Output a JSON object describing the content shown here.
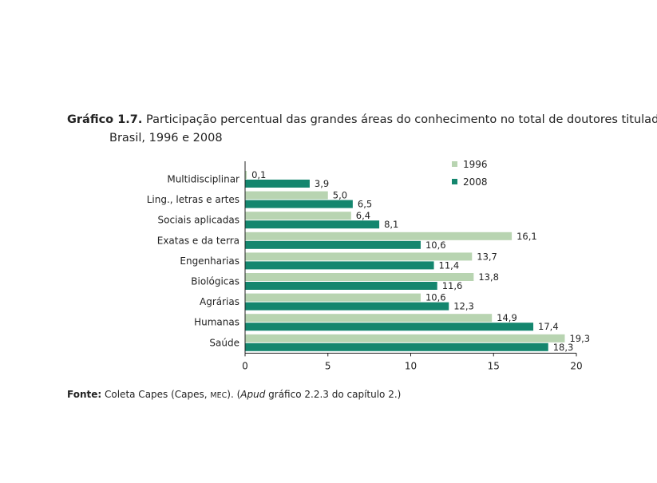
{
  "header": {
    "title_label": "Gráfico 1.7.",
    "title_line1": "Participação percentual das grandes áreas do conhecimento no total de doutores titulados no",
    "title_line2": "Brasil, 1996 e 2008"
  },
  "footer": {
    "source_label": "Fonte:",
    "source_text_a": "Coleta Capes (Capes,",
    "source_mec": "MEC",
    "source_text_b": "). (",
    "source_apud": "Apud",
    "source_text_c": "gráfico 2.2.3 do capítulo 2.)"
  },
  "chart_data": {
    "type": "bar",
    "orientation": "horizontal",
    "categories": [
      "Multidisciplinar",
      "Ling., letras e artes",
      "Sociais aplicadas",
      "Exatas e da terra",
      "Engenharias",
      "Biológicas",
      "Agrárias",
      "Humanas",
      "Saúde"
    ],
    "series": [
      {
        "name": "1996",
        "color": "#b8d4b1",
        "values": [
          0.1,
          5.0,
          6.4,
          16.1,
          13.7,
          13.8,
          10.6,
          14.9,
          19.3
        ],
        "labels": [
          "0,1",
          "5,0",
          "6,4",
          "16,1",
          "13,7",
          "13,8",
          "10,6",
          "14,9",
          "19,3"
        ]
      },
      {
        "name": "2008",
        "color": "#14866e",
        "values": [
          3.9,
          6.5,
          8.1,
          10.6,
          11.4,
          11.6,
          12.3,
          17.4,
          18.3
        ],
        "labels": [
          "3,9",
          "6,5",
          "8,1",
          "10,6",
          "11,4",
          "11,6",
          "12,3",
          "17,4",
          "18,3"
        ]
      }
    ],
    "xlim": [
      0,
      20
    ],
    "xticks": [
      0,
      5,
      10,
      15,
      20
    ],
    "xtick_labels": [
      "0",
      "5",
      "10",
      "15",
      "20"
    ],
    "legend_position": "top-right",
    "grid": false
  }
}
